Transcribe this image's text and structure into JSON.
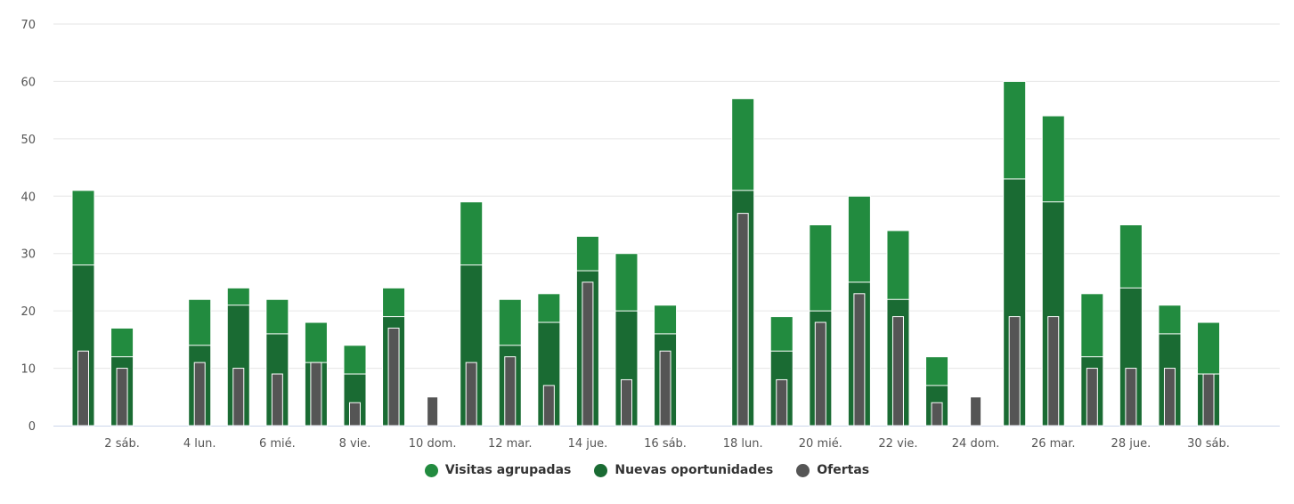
{
  "chart_data": {
    "type": "bar",
    "stacked_overlay": true,
    "x": [
      1,
      2,
      3,
      4,
      5,
      6,
      7,
      8,
      9,
      10,
      11,
      12,
      13,
      14,
      15,
      16,
      17,
      18,
      19,
      20,
      21,
      22,
      23,
      24,
      25,
      26,
      27,
      28,
      29,
      30
    ],
    "x_tick_labels": [
      {
        "x": 2,
        "label": "2 sáb."
      },
      {
        "x": 4,
        "label": "4 lun."
      },
      {
        "x": 6,
        "label": "6 mié."
      },
      {
        "x": 8,
        "label": "8 vie."
      },
      {
        "x": 10,
        "label": "10 dom."
      },
      {
        "x": 12,
        "label": "12 mar."
      },
      {
        "x": 14,
        "label": "14 jue."
      },
      {
        "x": 16,
        "label": "16 sáb."
      },
      {
        "x": 18,
        "label": "18 lun."
      },
      {
        "x": 20,
        "label": "20 mié."
      },
      {
        "x": 22,
        "label": "22 vie."
      },
      {
        "x": 24,
        "label": "24 dom."
      },
      {
        "x": 26,
        "label": "26 mar."
      },
      {
        "x": 28,
        "label": "28 jue."
      },
      {
        "x": 30,
        "label": "30 sáb."
      }
    ],
    "y_ticks": [
      0,
      10,
      20,
      30,
      40,
      50,
      60,
      70
    ],
    "ylim": [
      0,
      70
    ],
    "grid": true,
    "legend_position": "bottom-center",
    "series": [
      {
        "name": "Visitas agrupadas",
        "color": "#228B3F",
        "values": [
          41,
          17,
          0,
          22,
          24,
          22,
          18,
          14,
          24,
          0,
          39,
          22,
          23,
          33,
          30,
          21,
          0,
          57,
          19,
          35,
          40,
          34,
          12,
          0,
          60,
          54,
          23,
          35,
          21,
          18
        ]
      },
      {
        "name": "Nuevas oportunidades",
        "color": "#1A6B33",
        "values": [
          28,
          12,
          0,
          14,
          21,
          16,
          11,
          9,
          19,
          0,
          28,
          14,
          18,
          27,
          20,
          16,
          0,
          41,
          13,
          20,
          25,
          22,
          7,
          0,
          43,
          39,
          12,
          24,
          16,
          9
        ]
      },
      {
        "name": "Ofertas",
        "color": "#555555",
        "values": [
          13,
          10,
          0,
          11,
          10,
          9,
          11,
          4,
          17,
          5,
          11,
          12,
          7,
          25,
          8,
          13,
          0,
          37,
          8,
          18,
          23,
          19,
          4,
          5,
          19,
          19,
          10,
          10,
          10,
          9
        ]
      }
    ]
  }
}
